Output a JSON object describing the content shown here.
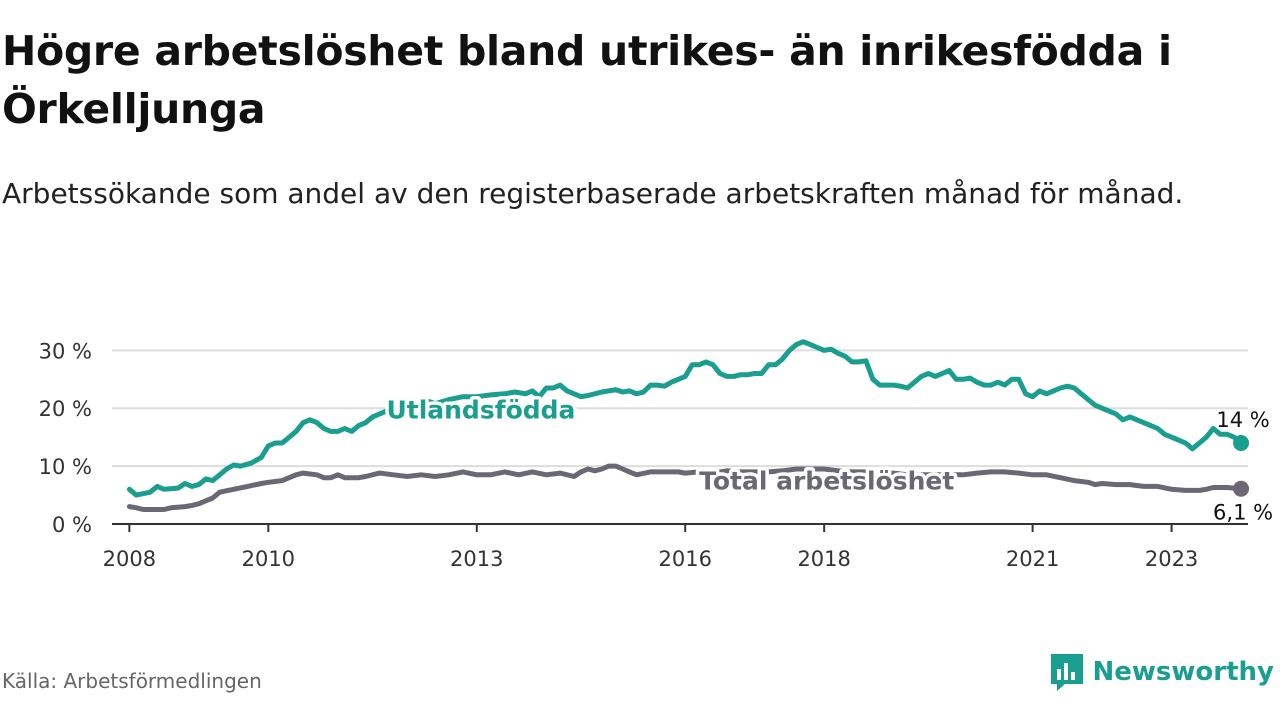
{
  "header": {
    "title": "Högre arbetslöshet bland utrikes- än inrikesfödda i Örkelljunga",
    "subtitle": "Arbetssökande som andel av den registerbaserade arbetskraften månad för månad."
  },
  "footer": {
    "source": "Källa: Arbetsförmedlingen",
    "brand": "Newsworthy"
  },
  "colors": {
    "utlandsfodda": "#1a9e8f",
    "total": "#6b6873",
    "grid": "#dddddd",
    "axis": "#333333"
  },
  "chart_data": {
    "type": "line",
    "title": "Högre arbetslöshet bland utrikes- än inrikesfödda i Örkelljunga",
    "subtitle": "Arbetssökande som andel av den registerbaserade arbetskraften månad för månad.",
    "xlabel": "",
    "ylabel": "",
    "xlim": [
      2007.75,
      2024.1
    ],
    "ylim": [
      0,
      33
    ],
    "y_ticks": [
      0,
      10,
      20,
      30
    ],
    "y_tick_labels": [
      "0 %",
      "10 %",
      "20 %",
      "30 %"
    ],
    "x_ticks": [
      2008,
      2010,
      2013,
      2016,
      2018,
      2021,
      2023
    ],
    "x_tick_labels": [
      "2008",
      "2010",
      "2013",
      "2016",
      "2018",
      "2021",
      "2023"
    ],
    "grid": true,
    "series": [
      {
        "name": "Utlandsfödda",
        "label": "Utlandsfödda",
        "end_label": "14 %",
        "points": [
          [
            2008.0,
            6.0
          ],
          [
            2008.1,
            5.0
          ],
          [
            2008.3,
            5.5
          ],
          [
            2008.4,
            6.5
          ],
          [
            2008.5,
            6.0
          ],
          [
            2008.7,
            6.2
          ],
          [
            2008.8,
            7.0
          ],
          [
            2008.9,
            6.5
          ],
          [
            2009.0,
            6.8
          ],
          [
            2009.1,
            7.8
          ],
          [
            2009.2,
            7.5
          ],
          [
            2009.3,
            8.5
          ],
          [
            2009.4,
            9.5
          ],
          [
            2009.5,
            10.2
          ],
          [
            2009.6,
            10.0
          ],
          [
            2009.75,
            10.5
          ],
          [
            2009.9,
            11.5
          ],
          [
            2010.0,
            13.5
          ],
          [
            2010.1,
            14.0
          ],
          [
            2010.2,
            14.0
          ],
          [
            2010.3,
            15.0
          ],
          [
            2010.4,
            16.0
          ],
          [
            2010.5,
            17.5
          ],
          [
            2010.6,
            18.0
          ],
          [
            2010.7,
            17.5
          ],
          [
            2010.8,
            16.5
          ],
          [
            2010.9,
            16.0
          ],
          [
            2011.0,
            16.0
          ],
          [
            2011.1,
            16.5
          ],
          [
            2011.2,
            16.0
          ],
          [
            2011.3,
            17.0
          ],
          [
            2011.4,
            17.5
          ],
          [
            2011.5,
            18.5
          ],
          [
            2011.6,
            19.0
          ],
          [
            2011.7,
            19.5
          ],
          [
            2011.8,
            20.0
          ],
          [
            2011.9,
            19.5
          ],
          [
            2012.0,
            20.0
          ],
          [
            2012.1,
            20.5
          ],
          [
            2012.2,
            21.0
          ],
          [
            2012.3,
            21.2
          ],
          [
            2012.4,
            20.8
          ],
          [
            2012.6,
            21.5
          ],
          [
            2012.8,
            22.0
          ],
          [
            2013.0,
            22.0
          ],
          [
            2013.2,
            22.3
          ],
          [
            2013.4,
            22.5
          ],
          [
            2013.55,
            22.8
          ],
          [
            2013.7,
            22.5
          ],
          [
            2013.8,
            23.0
          ],
          [
            2013.9,
            22.0
          ],
          [
            2014.0,
            23.5
          ],
          [
            2014.1,
            23.5
          ],
          [
            2014.2,
            24.0
          ],
          [
            2014.3,
            23.0
          ],
          [
            2014.4,
            22.5
          ],
          [
            2014.5,
            22.0
          ],
          [
            2014.6,
            22.2
          ],
          [
            2014.7,
            22.5
          ],
          [
            2014.8,
            22.8
          ],
          [
            2014.9,
            23.0
          ],
          [
            2015.0,
            23.2
          ],
          [
            2015.1,
            22.8
          ],
          [
            2015.2,
            23.0
          ],
          [
            2015.3,
            22.5
          ],
          [
            2015.4,
            22.8
          ],
          [
            2015.5,
            24.0
          ],
          [
            2015.6,
            24.0
          ],
          [
            2015.7,
            23.8
          ],
          [
            2015.8,
            24.5
          ],
          [
            2015.9,
            25.0
          ],
          [
            2016.0,
            25.5
          ],
          [
            2016.1,
            27.5
          ],
          [
            2016.2,
            27.5
          ],
          [
            2016.3,
            28.0
          ],
          [
            2016.4,
            27.5
          ],
          [
            2016.5,
            26.0
          ],
          [
            2016.6,
            25.5
          ],
          [
            2016.7,
            25.5
          ],
          [
            2016.8,
            25.8
          ],
          [
            2016.9,
            25.8
          ],
          [
            2017.0,
            26.0
          ],
          [
            2017.1,
            26.0
          ],
          [
            2017.2,
            27.5
          ],
          [
            2017.3,
            27.5
          ],
          [
            2017.4,
            28.5
          ],
          [
            2017.5,
            30.0
          ],
          [
            2017.6,
            31.0
          ],
          [
            2017.7,
            31.5
          ],
          [
            2017.8,
            31.0
          ],
          [
            2017.9,
            30.5
          ],
          [
            2018.0,
            30.0
          ],
          [
            2018.1,
            30.2
          ],
          [
            2018.2,
            29.5
          ],
          [
            2018.3,
            29.0
          ],
          [
            2018.4,
            28.0
          ],
          [
            2018.5,
            28.0
          ],
          [
            2018.6,
            28.2
          ],
          [
            2018.7,
            25.0
          ],
          [
            2018.8,
            24.0
          ],
          [
            2018.9,
            24.0
          ],
          [
            2019.0,
            24.0
          ],
          [
            2019.1,
            23.8
          ],
          [
            2019.2,
            23.5
          ],
          [
            2019.3,
            24.5
          ],
          [
            2019.4,
            25.5
          ],
          [
            2019.5,
            26.0
          ],
          [
            2019.6,
            25.5
          ],
          [
            2019.7,
            26.0
          ],
          [
            2019.8,
            26.5
          ],
          [
            2019.9,
            25.0
          ],
          [
            2020.0,
            25.0
          ],
          [
            2020.1,
            25.2
          ],
          [
            2020.2,
            24.5
          ],
          [
            2020.3,
            24.0
          ],
          [
            2020.4,
            24.0
          ],
          [
            2020.5,
            24.5
          ],
          [
            2020.6,
            24.0
          ],
          [
            2020.7,
            25.0
          ],
          [
            2020.8,
            25.0
          ],
          [
            2020.9,
            22.5
          ],
          [
            2021.0,
            22.0
          ],
          [
            2021.1,
            23.0
          ],
          [
            2021.2,
            22.5
          ],
          [
            2021.3,
            23.0
          ],
          [
            2021.4,
            23.5
          ],
          [
            2021.5,
            23.8
          ],
          [
            2021.6,
            23.5
          ],
          [
            2021.7,
            22.5
          ],
          [
            2021.8,
            21.5
          ],
          [
            2021.9,
            20.5
          ],
          [
            2022.0,
            20.0
          ],
          [
            2022.1,
            19.5
          ],
          [
            2022.2,
            19.0
          ],
          [
            2022.3,
            18.0
          ],
          [
            2022.4,
            18.5
          ],
          [
            2022.5,
            18.0
          ],
          [
            2022.6,
            17.5
          ],
          [
            2022.7,
            17.0
          ],
          [
            2022.8,
            16.5
          ],
          [
            2022.9,
            15.5
          ],
          [
            2023.0,
            15.0
          ],
          [
            2023.1,
            14.5
          ],
          [
            2023.2,
            14.0
          ],
          [
            2023.3,
            13.0
          ],
          [
            2023.4,
            14.0
          ],
          [
            2023.5,
            15.0
          ],
          [
            2023.6,
            16.5
          ],
          [
            2023.7,
            15.5
          ],
          [
            2023.8,
            15.5
          ],
          [
            2023.9,
            15.0
          ],
          [
            2024.0,
            14.0
          ]
        ]
      },
      {
        "name": "Total arbetslöshet",
        "label": "Total arbetslöshet",
        "end_label": "6,1 %",
        "points": [
          [
            2008.0,
            3.0
          ],
          [
            2008.1,
            2.8
          ],
          [
            2008.2,
            2.5
          ],
          [
            2008.4,
            2.5
          ],
          [
            2008.5,
            2.5
          ],
          [
            2008.6,
            2.8
          ],
          [
            2008.8,
            3.0
          ],
          [
            2008.9,
            3.2
          ],
          [
            2009.0,
            3.5
          ],
          [
            2009.1,
            4.0
          ],
          [
            2009.2,
            4.5
          ],
          [
            2009.3,
            5.5
          ],
          [
            2009.5,
            6.0
          ],
          [
            2009.7,
            6.5
          ],
          [
            2009.9,
            7.0
          ],
          [
            2010.0,
            7.2
          ],
          [
            2010.2,
            7.5
          ],
          [
            2010.4,
            8.5
          ],
          [
            2010.5,
            8.8
          ],
          [
            2010.7,
            8.5
          ],
          [
            2010.8,
            8.0
          ],
          [
            2010.9,
            8.0
          ],
          [
            2011.0,
            8.5
          ],
          [
            2011.1,
            8.0
          ],
          [
            2011.3,
            8.0
          ],
          [
            2011.4,
            8.2
          ],
          [
            2011.6,
            8.8
          ],
          [
            2011.8,
            8.5
          ],
          [
            2012.0,
            8.2
          ],
          [
            2012.2,
            8.5
          ],
          [
            2012.4,
            8.2
          ],
          [
            2012.6,
            8.5
          ],
          [
            2012.8,
            9.0
          ],
          [
            2013.0,
            8.5
          ],
          [
            2013.2,
            8.5
          ],
          [
            2013.4,
            9.0
          ],
          [
            2013.6,
            8.5
          ],
          [
            2013.8,
            9.0
          ],
          [
            2014.0,
            8.5
          ],
          [
            2014.2,
            8.8
          ],
          [
            2014.4,
            8.2
          ],
          [
            2014.5,
            9.0
          ],
          [
            2014.6,
            9.5
          ],
          [
            2014.7,
            9.2
          ],
          [
            2014.8,
            9.5
          ],
          [
            2014.9,
            10.0
          ],
          [
            2015.0,
            10.0
          ],
          [
            2015.1,
            9.5
          ],
          [
            2015.2,
            9.0
          ],
          [
            2015.3,
            8.5
          ],
          [
            2015.5,
            9.0
          ],
          [
            2015.7,
            9.0
          ],
          [
            2015.9,
            9.0
          ],
          [
            2016.0,
            8.8
          ],
          [
            2016.2,
            9.0
          ],
          [
            2016.4,
            8.8
          ],
          [
            2016.6,
            9.2
          ],
          [
            2016.8,
            9.0
          ],
          [
            2017.0,
            9.0
          ],
          [
            2017.2,
            9.0
          ],
          [
            2017.4,
            9.2
          ],
          [
            2017.6,
            9.5
          ],
          [
            2017.8,
            9.5
          ],
          [
            2018.0,
            9.5
          ],
          [
            2018.2,
            9.2
          ],
          [
            2018.4,
            9.0
          ],
          [
            2018.6,
            9.0
          ],
          [
            2018.8,
            8.8
          ],
          [
            2019.0,
            8.8
          ],
          [
            2019.2,
            8.5
          ],
          [
            2019.4,
            8.5
          ],
          [
            2019.6,
            8.5
          ],
          [
            2019.8,
            8.5
          ],
          [
            2020.0,
            8.5
          ],
          [
            2020.2,
            8.8
          ],
          [
            2020.4,
            9.0
          ],
          [
            2020.6,
            9.0
          ],
          [
            2020.8,
            8.8
          ],
          [
            2021.0,
            8.5
          ],
          [
            2021.2,
            8.5
          ],
          [
            2021.4,
            8.0
          ],
          [
            2021.6,
            7.5
          ],
          [
            2021.8,
            7.2
          ],
          [
            2021.9,
            6.8
          ],
          [
            2022.0,
            7.0
          ],
          [
            2022.2,
            6.8
          ],
          [
            2022.4,
            6.8
          ],
          [
            2022.6,
            6.5
          ],
          [
            2022.8,
            6.5
          ],
          [
            2023.0,
            6.0
          ],
          [
            2023.2,
            5.8
          ],
          [
            2023.4,
            5.8
          ],
          [
            2023.5,
            6.0
          ],
          [
            2023.6,
            6.3
          ],
          [
            2023.8,
            6.3
          ],
          [
            2024.0,
            6.1
          ]
        ]
      }
    ]
  }
}
